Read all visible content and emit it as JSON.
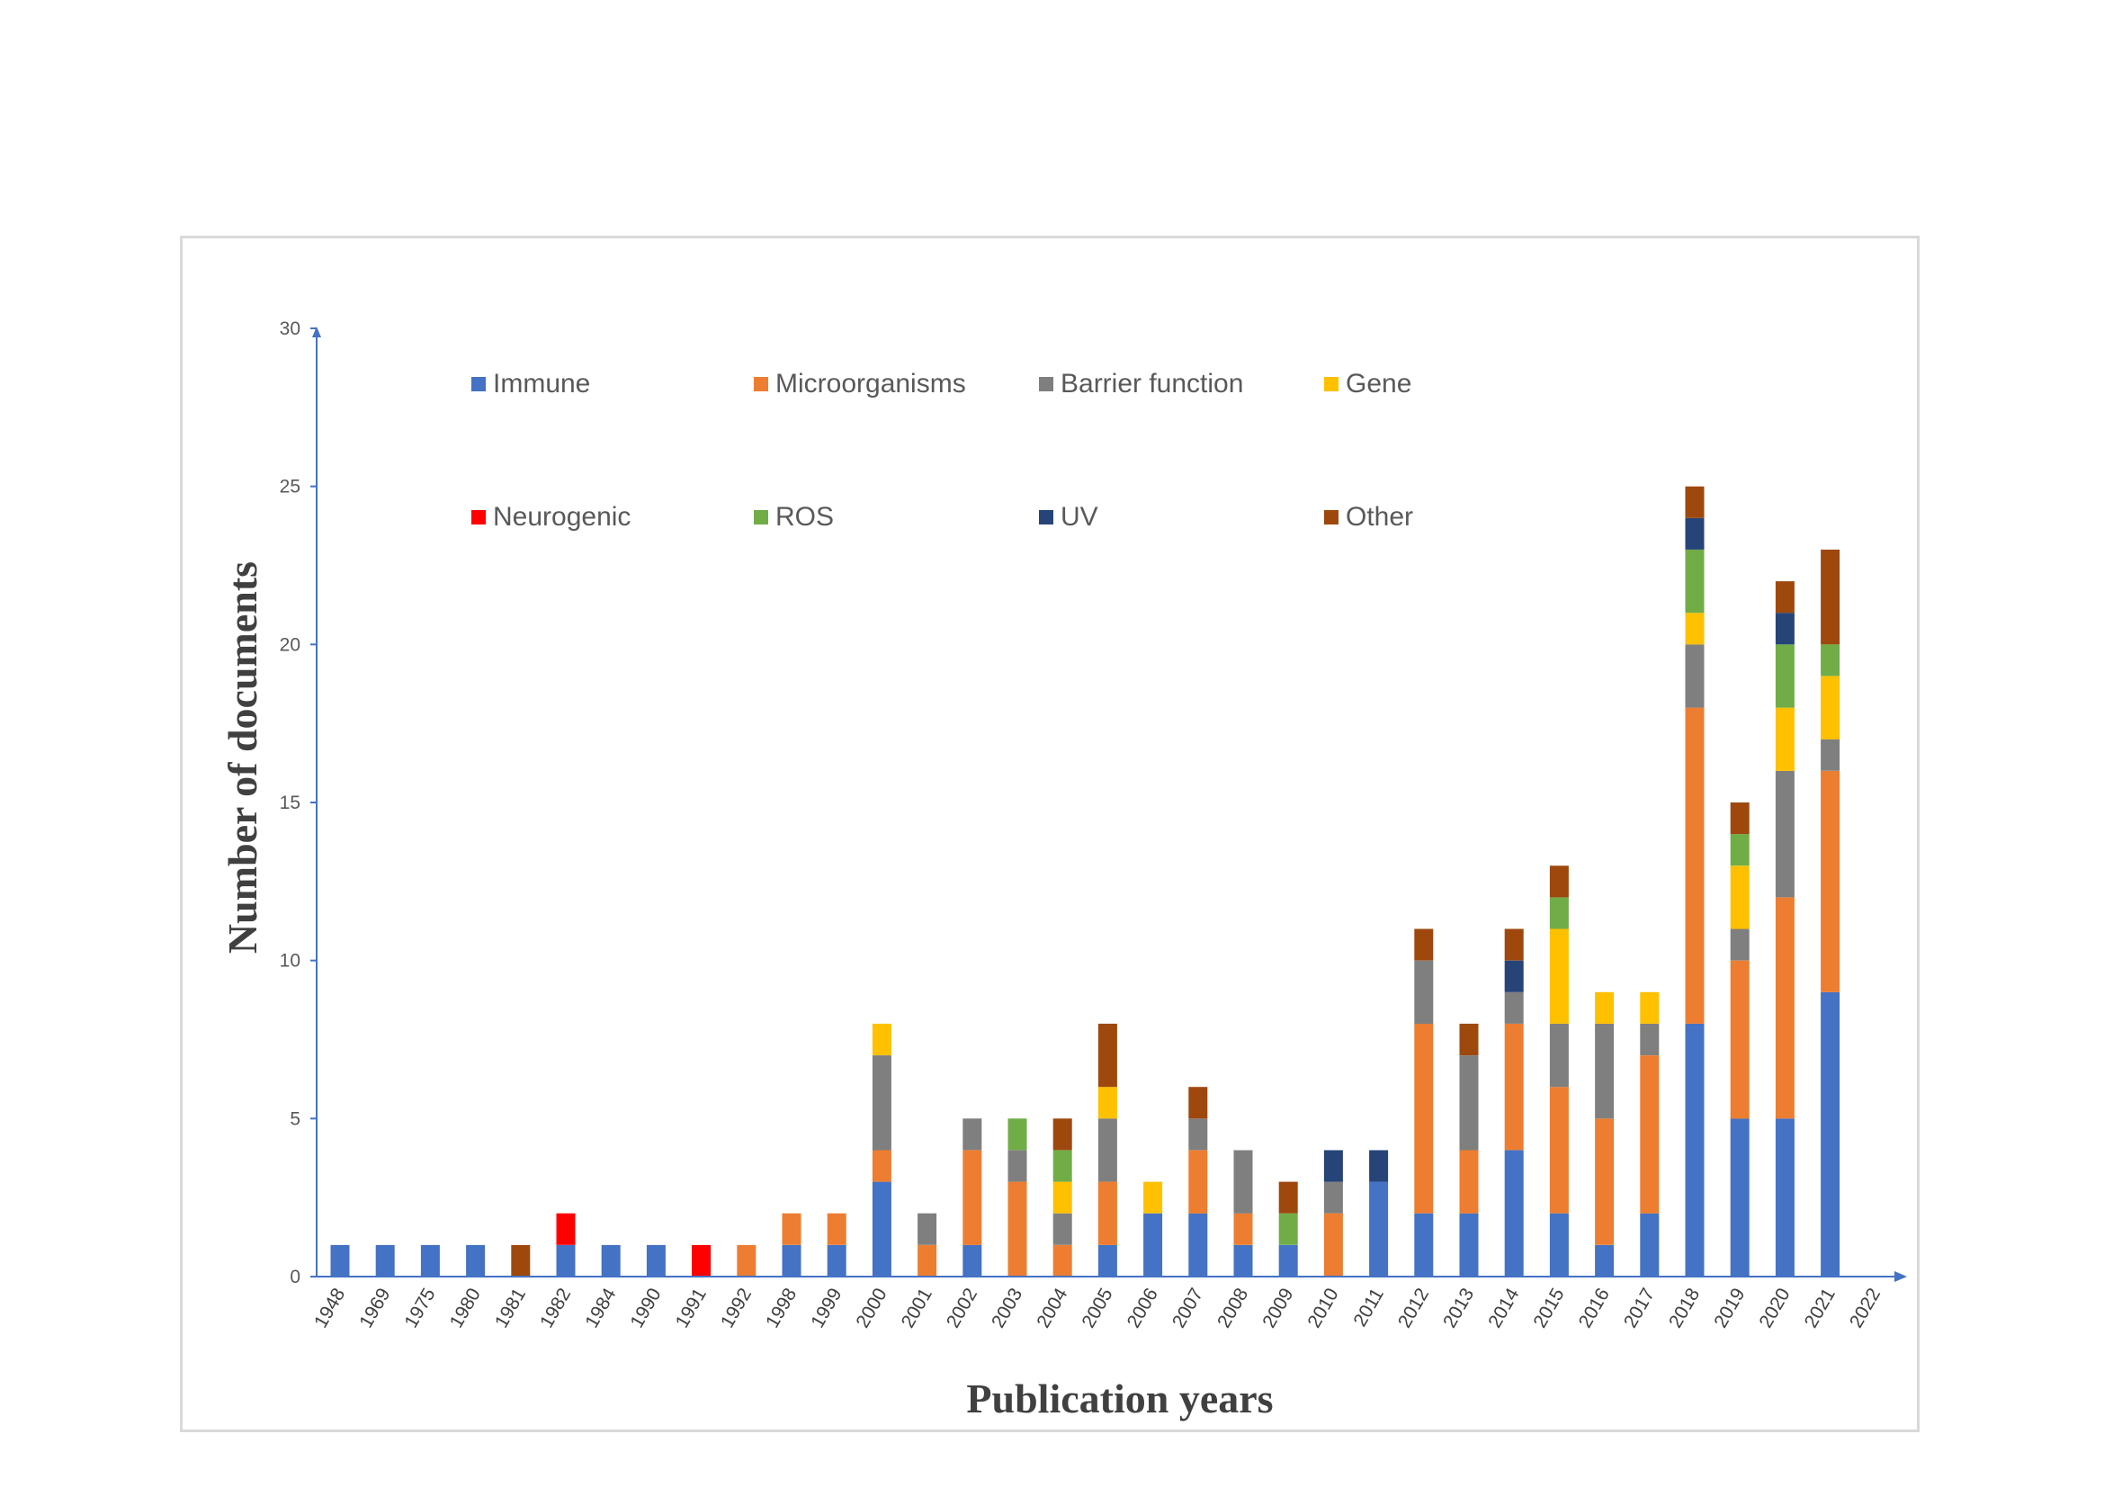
{
  "chart_data": {
    "type": "bar",
    "stacked": true,
    "xlabel": "Publication years",
    "ylabel": "Number of documents",
    "ylim": [
      0,
      30
    ],
    "yticks": [
      0,
      5,
      10,
      15,
      20,
      25,
      30
    ],
    "legend_position": "top-left, inside plot, two rows",
    "grid": false,
    "categories": [
      "1948",
      "1969",
      "1975",
      "1980",
      "1981",
      "1982",
      "1984",
      "1990",
      "1991",
      "1992",
      "1998",
      "1999",
      "2000",
      "2001",
      "2002",
      "2003",
      "2004",
      "2005",
      "2006",
      "2007",
      "2008",
      "2009",
      "2010",
      "2011",
      "2012",
      "2013",
      "2014",
      "2015",
      "2016",
      "2017",
      "2018",
      "2019",
      "2020",
      "2021",
      "2022"
    ],
    "series": [
      {
        "name": "Immune",
        "color": "#4472c4",
        "values": [
          1,
          1,
          1,
          1,
          0,
          1,
          1,
          1,
          0,
          0,
          1,
          1,
          3,
          0,
          1,
          0,
          0,
          1,
          2,
          2,
          1,
          1,
          0,
          3,
          2,
          2,
          4,
          2,
          1,
          2,
          8,
          5,
          5,
          9,
          0
        ]
      },
      {
        "name": "Microorganisms",
        "color": "#ed7d31",
        "values": [
          0,
          0,
          0,
          0,
          0,
          0,
          0,
          0,
          0,
          1,
          1,
          1,
          1,
          1,
          3,
          3,
          1,
          2,
          0,
          2,
          1,
          0,
          2,
          0,
          6,
          2,
          4,
          4,
          4,
          5,
          10,
          5,
          7,
          7,
          0
        ]
      },
      {
        "name": "Barrier function",
        "color": "#7f7f7f",
        "values": [
          0,
          0,
          0,
          0,
          0,
          0,
          0,
          0,
          0,
          0,
          0,
          0,
          3,
          1,
          1,
          1,
          1,
          2,
          0,
          1,
          2,
          0,
          1,
          0,
          2,
          3,
          1,
          2,
          3,
          1,
          2,
          1,
          4,
          1,
          0
        ]
      },
      {
        "name": "Gene",
        "color": "#ffc000",
        "values": [
          0,
          0,
          0,
          0,
          0,
          0,
          0,
          0,
          0,
          0,
          0,
          0,
          1,
          0,
          0,
          0,
          1,
          1,
          1,
          0,
          0,
          0,
          0,
          0,
          0,
          0,
          0,
          3,
          1,
          1,
          1,
          2,
          2,
          2,
          0
        ]
      },
      {
        "name": "Neurogenic",
        "color": "#ff0000",
        "values": [
          0,
          0,
          0,
          0,
          0,
          1,
          0,
          0,
          1,
          0,
          0,
          0,
          0,
          0,
          0,
          0,
          0,
          0,
          0,
          0,
          0,
          0,
          0,
          0,
          0,
          0,
          0,
          0,
          0,
          0,
          0,
          0,
          0,
          0,
          0
        ]
      },
      {
        "name": "ROS",
        "color": "#70ad47",
        "values": [
          0,
          0,
          0,
          0,
          0,
          0,
          0,
          0,
          0,
          0,
          0,
          0,
          0,
          0,
          0,
          1,
          1,
          0,
          0,
          0,
          0,
          1,
          0,
          0,
          0,
          0,
          0,
          1,
          0,
          0,
          2,
          1,
          2,
          1,
          0
        ]
      },
      {
        "name": "UV",
        "color": "#264478",
        "values": [
          0,
          0,
          0,
          0,
          0,
          0,
          0,
          0,
          0,
          0,
          0,
          0,
          0,
          0,
          0,
          0,
          0,
          0,
          0,
          0,
          0,
          0,
          1,
          1,
          0,
          0,
          1,
          0,
          0,
          0,
          1,
          0,
          1,
          0,
          0
        ]
      },
      {
        "name": "Other",
        "color": "#9e480e",
        "values": [
          0,
          0,
          0,
          0,
          1,
          0,
          0,
          0,
          0,
          0,
          0,
          0,
          0,
          0,
          0,
          0,
          1,
          2,
          0,
          1,
          0,
          1,
          0,
          0,
          1,
          1,
          1,
          1,
          0,
          0,
          1,
          1,
          1,
          3,
          0
        ]
      }
    ]
  }
}
